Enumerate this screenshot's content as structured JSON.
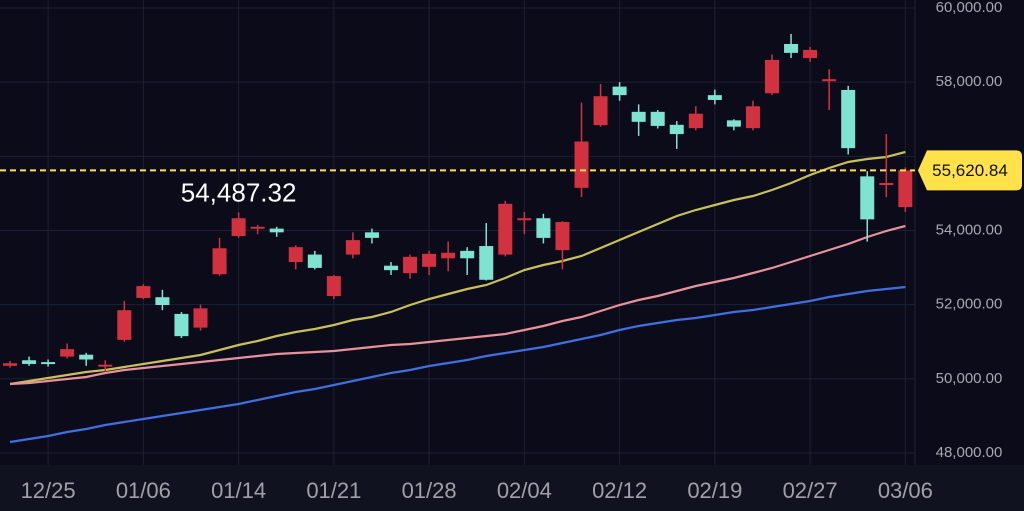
{
  "chart_data": {
    "type": "candlestick",
    "categories": [
      null,
      null,
      "12/25",
      null,
      null,
      null,
      null,
      "01/06",
      null,
      null,
      null,
      null,
      "01/14",
      null,
      null,
      null,
      null,
      "01/21",
      null,
      null,
      null,
      null,
      "01/28",
      null,
      null,
      null,
      null,
      "02/04",
      null,
      null,
      null,
      null,
      "02/12",
      null,
      null,
      null,
      null,
      "02/19",
      null,
      null,
      null,
      null,
      "02/27",
      null,
      null,
      null,
      null,
      "03/06"
    ],
    "candles": {
      "open": [
        50350,
        50500,
        50450,
        50600,
        50650,
        50330,
        51050,
        52180,
        52200,
        51750,
        51380,
        52820,
        53850,
        54050,
        54050,
        53150,
        53350,
        52230,
        53350,
        53950,
        53050,
        52850,
        53020,
        53250,
        53450,
        53580,
        53350,
        54300,
        54330,
        53470,
        55150,
        56840,
        57880,
        57200,
        57200,
        56850,
        56760,
        57650,
        56970,
        56760,
        57700,
        59030,
        58650,
        58050,
        57790,
        55460,
        55250,
        54630
      ],
      "high": [
        50480,
        50600,
        50520,
        50950,
        50700,
        50500,
        52100,
        52550,
        52400,
        51800,
        52000,
        53800,
        54487.32,
        54150,
        54100,
        53600,
        53450,
        52800,
        53950,
        54050,
        53150,
        53350,
        53450,
        53700,
        53550,
        54200,
        54800,
        54500,
        54450,
        54250,
        57450,
        57950,
        58000,
        57400,
        57250,
        56950,
        57350,
        57800,
        57000,
        57500,
        58750,
        59300,
        58950,
        58350,
        57900,
        55600,
        56600,
        55700
      ],
      "low": [
        50300,
        50350,
        50330,
        50550,
        50350,
        50200,
        51000,
        52150,
        51850,
        51100,
        51300,
        52780,
        53800,
        53900,
        53830,
        52950,
        52950,
        52150,
        53250,
        53650,
        52800,
        52700,
        52800,
        52900,
        52800,
        52650,
        53300,
        53900,
        53650,
        52950,
        54900,
        56800,
        57500,
        56550,
        56750,
        56200,
        56700,
        57400,
        56700,
        56700,
        57650,
        58650,
        58550,
        57250,
        56050,
        53700,
        54900,
        54500
      ],
      "close": [
        50420,
        50400,
        50400,
        50800,
        50520,
        50380,
        51850,
        52500,
        51990,
        51150,
        51900,
        53520,
        54330,
        54100,
        53950,
        53550,
        52990,
        52770,
        53740,
        53800,
        52930,
        53290,
        53370,
        53400,
        53250,
        52670,
        54720,
        54330,
        53800,
        54230,
        56400,
        57620,
        57650,
        56930,
        56820,
        56600,
        57150,
        57520,
        56800,
        57350,
        58600,
        58790,
        58870,
        58080,
        56220,
        54300,
        55280,
        55620.84
      ]
    },
    "up_color": "#d2323f",
    "down_color": "#7fe3d2",
    "lines": [
      {
        "color": "#c9c158",
        "values": [
          49859,
          49940,
          50021,
          50102,
          50183,
          50237,
          50318,
          50399,
          50480,
          50560,
          50641,
          50776,
          50911,
          51019,
          51154,
          51262,
          51343,
          51451,
          51585,
          51666,
          51801,
          51990,
          52152,
          52287,
          52421,
          52529,
          52718,
          52934,
          53069,
          53177,
          53311,
          53527,
          53743,
          53959,
          54174,
          54390,
          54552,
          54687,
          54822,
          54930,
          55091,
          55280,
          55496,
          55685,
          55847,
          55928,
          55981,
          56116
        ]
      },
      {
        "color": "#e8929c",
        "values": [
          49859,
          49886,
          49940,
          49994,
          50048,
          50156,
          50237,
          50291,
          50345,
          50399,
          50453,
          50507,
          50561,
          50615,
          50668,
          50695,
          50722,
          50749,
          50803,
          50857,
          50911,
          50938,
          50992,
          51046,
          51100,
          51154,
          51208,
          51316,
          51423,
          51558,
          51666,
          51828,
          51990,
          52125,
          52233,
          52367,
          52502,
          52610,
          52718,
          52853,
          52988,
          53150,
          53311,
          53473,
          53635,
          53824,
          53986,
          54120
        ]
      },
      {
        "color": "#3f6fe0",
        "values": [
          48295,
          48376,
          48457,
          48565,
          48646,
          48754,
          48834,
          48915,
          48996,
          49077,
          49158,
          49239,
          49320,
          49428,
          49536,
          49644,
          49724,
          49832,
          49940,
          50048,
          50156,
          50237,
          50345,
          50426,
          50507,
          50614,
          50695,
          50776,
          50857,
          50965,
          51073,
          51181,
          51316,
          51424,
          51504,
          51585,
          51639,
          51720,
          51801,
          51855,
          51936,
          52017,
          52098,
          52206,
          52287,
          52367,
          52421,
          52475
        ]
      }
    ],
    "price_line": {
      "value": 55620.84,
      "label": "55,620.84",
      "color": "#ffe14a"
    },
    "high_label": {
      "index": 12,
      "value": 54487.32,
      "label": "54,487.32"
    },
    "ylim": [
      47675,
      60216
    ],
    "yticks": [
      {
        "value": 48000,
        "label": "48,000.00"
      },
      {
        "value": 50000,
        "label": "50,000.00"
      },
      {
        "value": 52000,
        "label": "52,000.00"
      },
      {
        "value": 54000,
        "label": "54,000.00"
      },
      {
        "value": 56000,
        "label": "56,000.00"
      },
      {
        "value": 58000,
        "label": "58,000.00"
      },
      {
        "value": 60000,
        "label": "60,000.00"
      }
    ],
    "grid": true
  }
}
